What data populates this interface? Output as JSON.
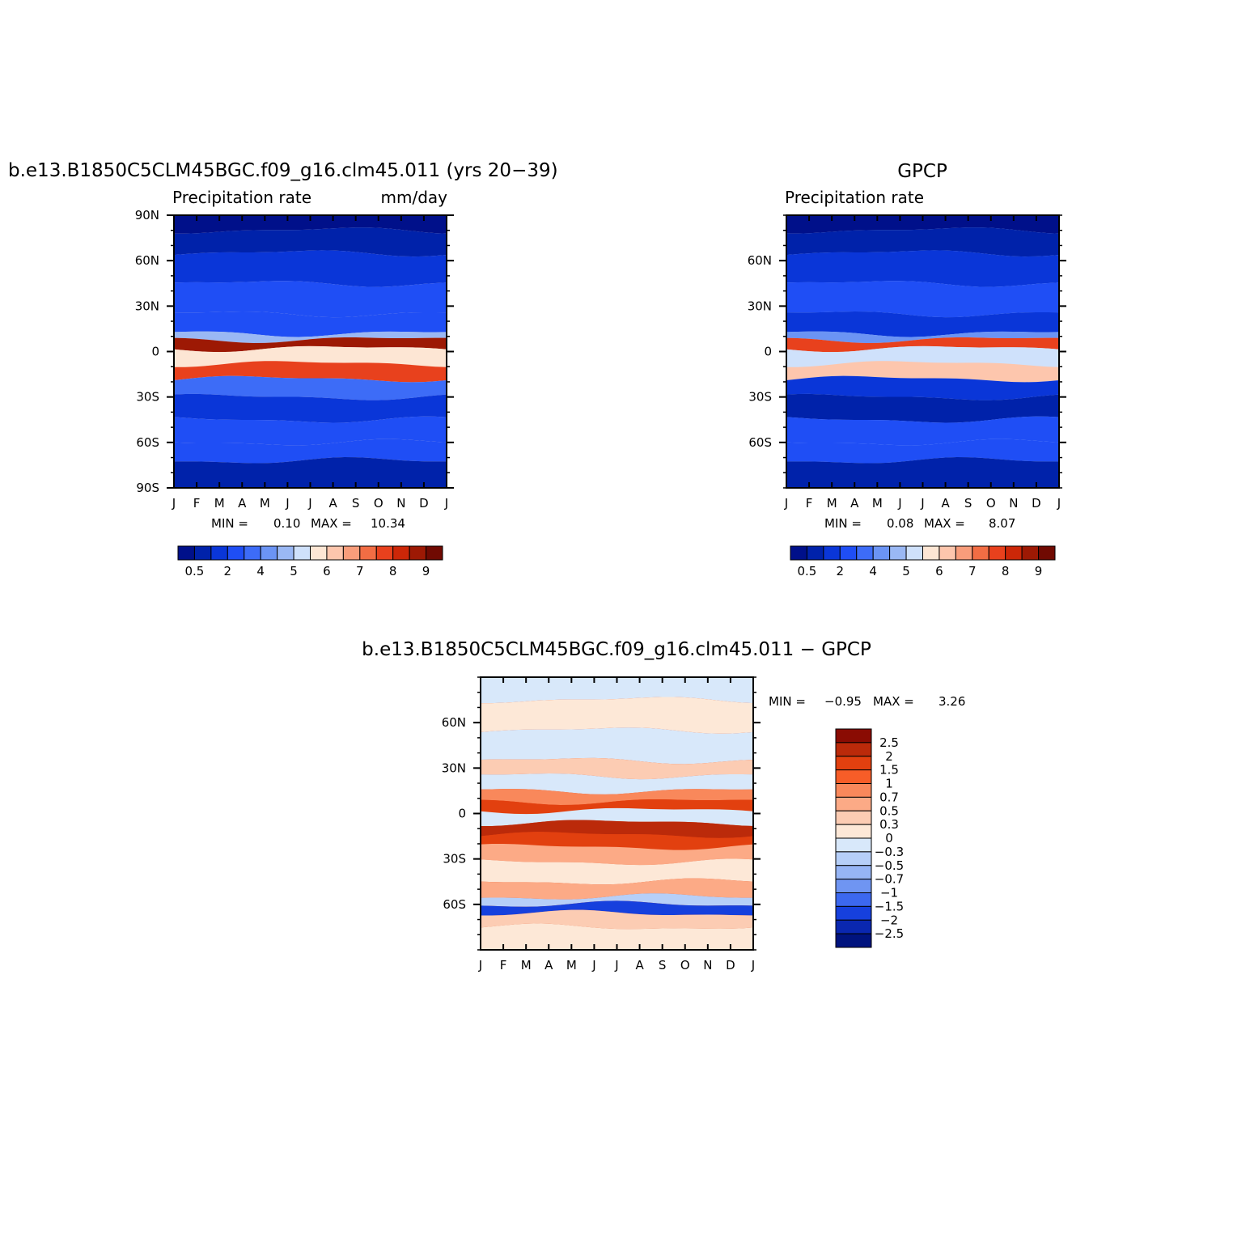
{
  "chart_data": [
    {
      "type": "heatmap",
      "title": "b.e13.B1850C5CLM45BGC.f09_g16.clm45.011 (yrs 20−39)",
      "subtitle_left": "Precipitation rate",
      "subtitle_right": "mm/day",
      "x_ticks": [
        "J",
        "F",
        "M",
        "A",
        "M",
        "J",
        "J",
        "A",
        "S",
        "O",
        "N",
        "D",
        "J"
      ],
      "y_ticks": [
        "90N",
        "60N",
        "30N",
        "0",
        "30S",
        "60S",
        "90S"
      ],
      "y_tick_values": [
        90,
        60,
        30,
        0,
        -30,
        -60,
        -90
      ],
      "ylim": [
        -90,
        90
      ],
      "min_label": "MIN =",
      "min_value": "0.10",
      "max_label": "MAX =",
      "max_value": "10.34",
      "colorbar": {
        "levels": [
          0.5,
          1,
          2,
          3,
          4,
          4.5,
          5,
          5.5,
          6,
          6.5,
          7,
          7.5,
          8,
          8.5,
          9
        ],
        "labels": [
          "0.5",
          "2",
          "4",
          "5",
          "6",
          "7",
          "8",
          "9"
        ],
        "colors": [
          "#00108a",
          "#0022aa",
          "#0a36d8",
          "#1f4ef5",
          "#3d6cf7",
          "#6b94f4",
          "#9ab8f4",
          "#cfe1fb",
          "#fde6d4",
          "#fdc6ad",
          "#f89d7b",
          "#f26d44",
          "#e8411d",
          "#cc2708",
          "#9d1904",
          "#700a02"
        ]
      },
      "bands": [
        {
          "lat": 90,
          "level": 0
        },
        {
          "lat": 80,
          "level": 1
        },
        {
          "lat": 65,
          "level": 2
        },
        {
          "lat": 45,
          "level": 3
        },
        {
          "lat": 25,
          "level": 3
        },
        {
          "lat": 12,
          "level": 6
        },
        {
          "lat": 8,
          "level": 14
        },
        {
          "lat": 2,
          "level": 8
        },
        {
          "lat": -8,
          "level": 12
        },
        {
          "lat": -18,
          "level": 4
        },
        {
          "lat": -30,
          "level": 2
        },
        {
          "lat": -45,
          "level": 3
        },
        {
          "lat": -60,
          "level": 3
        },
        {
          "lat": -72,
          "level": 1
        },
        {
          "lat": -90,
          "level": 0
        }
      ]
    },
    {
      "type": "heatmap",
      "title": "GPCP",
      "subtitle_left": "Precipitation rate",
      "subtitle_right": "",
      "x_ticks": [
        "J",
        "F",
        "M",
        "A",
        "M",
        "J",
        "J",
        "A",
        "S",
        "O",
        "N",
        "D",
        "J"
      ],
      "y_ticks": [
        "60N",
        "30N",
        "0",
        "30S",
        "60S"
      ],
      "y_tick_values": [
        60,
        30,
        0,
        -30,
        -60
      ],
      "ylim": [
        -90,
        90
      ],
      "min_label": "MIN =",
      "min_value": "0.08",
      "max_label": "MAX =",
      "max_value": "8.07",
      "colorbar": {
        "levels": [
          0.5,
          1,
          2,
          3,
          4,
          4.5,
          5,
          5.5,
          6,
          6.5,
          7,
          7.5,
          8,
          8.5,
          9
        ],
        "labels": [
          "0.5",
          "2",
          "4",
          "5",
          "6",
          "7",
          "8",
          "9"
        ],
        "colors": [
          "#00108a",
          "#0022aa",
          "#0a36d8",
          "#1f4ef5",
          "#3d6cf7",
          "#6b94f4",
          "#9ab8f4",
          "#cfe1fb",
          "#fde6d4",
          "#fdc6ad",
          "#f89d7b",
          "#f26d44",
          "#e8411d",
          "#cc2708",
          "#9d1904",
          "#700a02"
        ]
      },
      "bands": [
        {
          "lat": 90,
          "level": 0
        },
        {
          "lat": 80,
          "level": 1
        },
        {
          "lat": 65,
          "level": 2
        },
        {
          "lat": 45,
          "level": 3
        },
        {
          "lat": 25,
          "level": 2
        },
        {
          "lat": 12,
          "level": 5
        },
        {
          "lat": 8,
          "level": 12
        },
        {
          "lat": 2,
          "level": 7
        },
        {
          "lat": -8,
          "level": 9
        },
        {
          "lat": -18,
          "level": 2
        },
        {
          "lat": -30,
          "level": 1
        },
        {
          "lat": -45,
          "level": 3
        },
        {
          "lat": -60,
          "level": 3
        },
        {
          "lat": -72,
          "level": 1
        },
        {
          "lat": -90,
          "level": 0
        }
      ]
    },
    {
      "type": "heatmap",
      "title": "b.e13.B1850C5CLM45BGC.f09_g16.clm45.011 − GPCP",
      "x_ticks": [
        "J",
        "F",
        "M",
        "A",
        "M",
        "J",
        "J",
        "A",
        "S",
        "O",
        "N",
        "D",
        "J"
      ],
      "y_ticks": [
        "60N",
        "30N",
        "0",
        "30S",
        "60S"
      ],
      "y_tick_values": [
        60,
        30,
        0,
        -30,
        -60
      ],
      "ylim": [
        -90,
        90
      ],
      "min_label": "MIN =",
      "min_value": "−0.95",
      "max_label": "MAX =",
      "max_value": "3.26",
      "colorbar": {
        "labels": [
          "2.5",
          "2",
          "1.5",
          "1",
          "0.7",
          "0.5",
          "0.3",
          "0",
          "−0.3",
          "−0.5",
          "−0.7",
          "−1",
          "−1.5",
          "−2",
          "−2.5"
        ],
        "colors": [
          "#8a0c03",
          "#bb2a0a",
          "#e2400f",
          "#f75d28",
          "#f9885b",
          "#fcaa86",
          "#fcccb3",
          "#fde8d7",
          "#d8e8fa",
          "#b6cff8",
          "#96b5f5",
          "#6f95f2",
          "#3c68ef",
          "#1640dd",
          "#0a27b0",
          "#00137e"
        ]
      },
      "bands": [
        {
          "lat": 90,
          "level": 8
        },
        {
          "lat": 75,
          "level": 7
        },
        {
          "lat": 55,
          "level": 8
        },
        {
          "lat": 35,
          "level": 6
        },
        {
          "lat": 25,
          "level": 8
        },
        {
          "lat": 15,
          "level": 4
        },
        {
          "lat": 8,
          "level": 2
        },
        {
          "lat": 2,
          "level": 8
        },
        {
          "lat": -6,
          "level": 1
        },
        {
          "lat": -14,
          "level": 2
        },
        {
          "lat": -22,
          "level": 5
        },
        {
          "lat": -32,
          "level": 7
        },
        {
          "lat": -45,
          "level": 5
        },
        {
          "lat": -55,
          "level": 9
        },
        {
          "lat": -60,
          "level": 13
        },
        {
          "lat": -66,
          "level": 6
        },
        {
          "lat": -75,
          "level": 7
        },
        {
          "lat": -90,
          "level": 8
        }
      ]
    }
  ]
}
